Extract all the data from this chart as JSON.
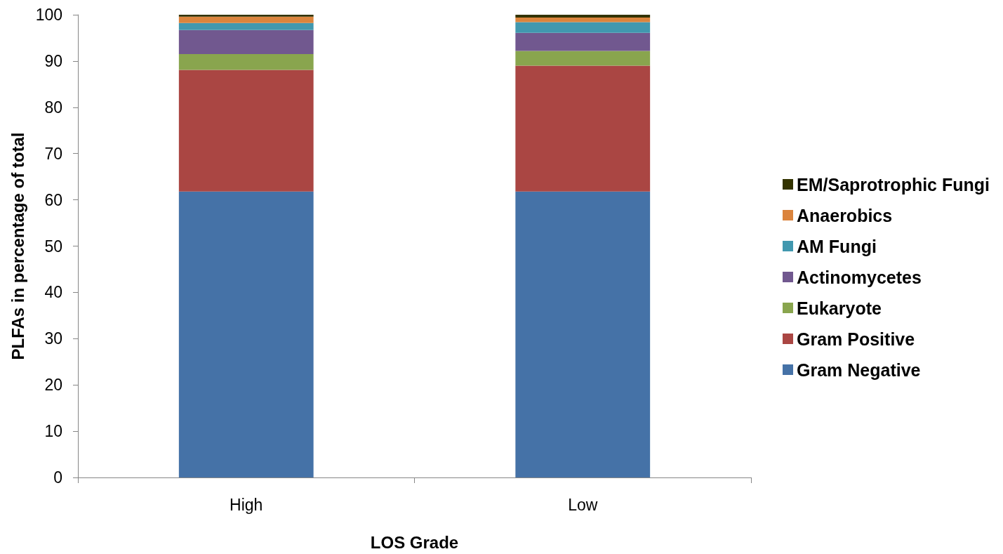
{
  "chart_data": {
    "type": "bar",
    "xlabel": "LOS Grade",
    "ylabel": "PLFAs in percentage of total",
    "categories": [
      "High",
      "Low"
    ],
    "series": [
      {
        "name": "Gram Negative",
        "color": "#4572a7",
        "values": [
          61.8,
          61.8
        ]
      },
      {
        "name": "Gram Positive",
        "color": "#aa4643",
        "values": [
          26.3,
          27.2
        ]
      },
      {
        "name": "Eukaryote",
        "color": "#89a54e",
        "values": [
          3.4,
          3.2
        ]
      },
      {
        "name": "Actinomycetes",
        "color": "#71588f",
        "values": [
          5.2,
          3.9
        ]
      },
      {
        "name": "AM Fungi",
        "color": "#4198af",
        "values": [
          1.5,
          2.3
        ]
      },
      {
        "name": "Anaerobics",
        "color": "#db843d",
        "values": [
          1.4,
          1.0
        ]
      },
      {
        "name": "EM/Saprotrophic Fungi",
        "color": "#333300",
        "values": [
          0.4,
          0.6
        ]
      }
    ],
    "stacked": true,
    "ylim": [
      0,
      100
    ],
    "yticks": [
      0,
      10,
      20,
      30,
      40,
      50,
      60,
      70,
      80,
      90,
      100
    ],
    "grid": false,
    "legend": "right"
  }
}
